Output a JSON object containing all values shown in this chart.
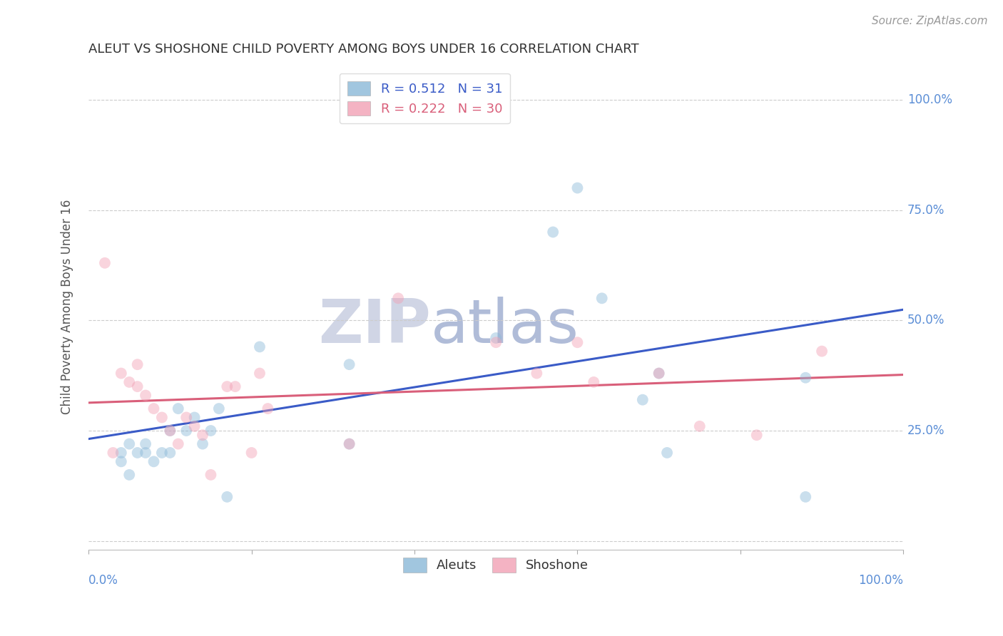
{
  "title": "ALEUT VS SHOSHONE CHILD POVERTY AMONG BOYS UNDER 16 CORRELATION CHART",
  "source": "Source: ZipAtlas.com",
  "ylabel": "Child Poverty Among Boys Under 16",
  "aleuts_R": "0.512",
  "aleuts_N": "31",
  "shoshone_R": "0.222",
  "shoshone_N": "30",
  "aleuts_color": "#8ab8d8",
  "shoshone_color": "#f2a0b5",
  "line_blue": "#3a5bc7",
  "line_pink": "#d95f7a",
  "watermark_zip_color": "#d0d5e5",
  "watermark_atlas_color": "#b0bcd8",
  "bg_color": "#ffffff",
  "grid_color": "#cccccc",
  "axis_label_color": "#5b8ed6",
  "title_color": "#333333",
  "aleuts_x": [
    0.38,
    0.04,
    0.04,
    0.05,
    0.05,
    0.06,
    0.07,
    0.07,
    0.08,
    0.09,
    0.1,
    0.1,
    0.11,
    0.12,
    0.13,
    0.14,
    0.15,
    0.16,
    0.17,
    0.21,
    0.32,
    0.32,
    0.5,
    0.57,
    0.6,
    0.63,
    0.68,
    0.7,
    0.71,
    0.88,
    0.88
  ],
  "aleuts_y": [
    1.0,
    0.2,
    0.18,
    0.22,
    0.15,
    0.2,
    0.22,
    0.2,
    0.18,
    0.2,
    0.25,
    0.2,
    0.3,
    0.25,
    0.28,
    0.22,
    0.25,
    0.3,
    0.1,
    0.44,
    0.4,
    0.22,
    0.46,
    0.7,
    0.8,
    0.55,
    0.32,
    0.38,
    0.2,
    0.37,
    0.1
  ],
  "shoshone_x": [
    0.02,
    0.03,
    0.04,
    0.05,
    0.06,
    0.06,
    0.07,
    0.08,
    0.09,
    0.1,
    0.11,
    0.12,
    0.13,
    0.14,
    0.15,
    0.17,
    0.18,
    0.2,
    0.21,
    0.22,
    0.32,
    0.38,
    0.5,
    0.55,
    0.6,
    0.62,
    0.7,
    0.75,
    0.82,
    0.9
  ],
  "shoshone_y": [
    0.63,
    0.2,
    0.38,
    0.36,
    0.35,
    0.4,
    0.33,
    0.3,
    0.28,
    0.25,
    0.22,
    0.28,
    0.26,
    0.24,
    0.15,
    0.35,
    0.35,
    0.2,
    0.38,
    0.3,
    0.22,
    0.55,
    0.45,
    0.38,
    0.45,
    0.36,
    0.38,
    0.26,
    0.24,
    0.43
  ],
  "xlim": [
    0.0,
    1.0
  ],
  "ylim": [
    -0.02,
    1.08
  ],
  "yticks": [
    0.0,
    0.25,
    0.5,
    0.75,
    1.0
  ],
  "ytick_labels": [
    "",
    "25.0%",
    "50.0%",
    "75.0%",
    "100.0%"
  ],
  "xtick_positions": [
    0.0,
    0.2,
    0.4,
    0.6,
    0.8,
    1.0
  ],
  "marker_size": 130,
  "marker_alpha": 0.45,
  "line_width": 2.2,
  "legend_fontsize": 13,
  "title_fontsize": 13,
  "ylabel_fontsize": 12,
  "source_fontsize": 11
}
